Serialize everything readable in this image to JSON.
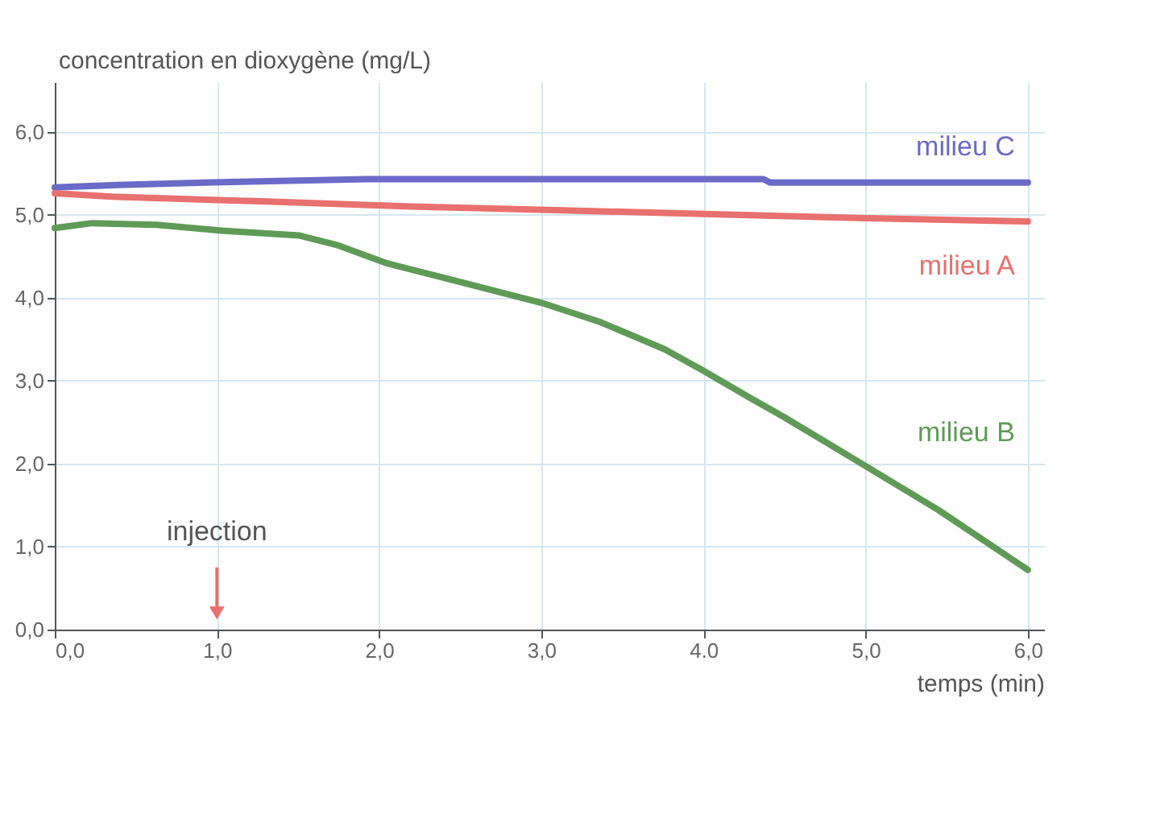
{
  "chart_data": {
    "type": "line",
    "xlabel": "temps (min)",
    "ylabel": "concentration en dioxygène (mg/L)",
    "xlim": [
      0,
      6.1
    ],
    "ylim": [
      0,
      6.6
    ],
    "xticks": [
      {
        "value": 0,
        "label": "0,0"
      },
      {
        "value": 1,
        "label": "1,0"
      },
      {
        "value": 2,
        "label": "2,0"
      },
      {
        "value": 3,
        "label": "3,0"
      },
      {
        "value": 4,
        "label": "4.0"
      },
      {
        "value": 5,
        "label": "5,0"
      },
      {
        "value": 6,
        "label": "6,0"
      }
    ],
    "yticks": [
      {
        "value": 0,
        "label": "0,0"
      },
      {
        "value": 1,
        "label": "1,0"
      },
      {
        "value": 2,
        "label": "2,0"
      },
      {
        "value": 3,
        "label": "3,0"
      },
      {
        "value": 4,
        "label": "4,0"
      },
      {
        "value": 5,
        "label": "5,0"
      },
      {
        "value": 6,
        "label": "6,0"
      }
    ],
    "grid": true,
    "legend": false,
    "marker": "none",
    "line_style": "solid",
    "series": [
      {
        "name": "milieu C",
        "color": "#6a6ac8",
        "x": [
          0,
          0.39,
          1.15,
          1.92,
          4.37,
          4.41,
          6.0
        ],
        "values": [
          5.33,
          5.36,
          5.4,
          5.43,
          5.43,
          5.39,
          5.39
        ]
      },
      {
        "name": "milieu A",
        "color": "#e8706e",
        "x": [
          0,
          0.35,
          1.31,
          2.2,
          3.04,
          4.0,
          5.01,
          6.0
        ],
        "values": [
          5.26,
          5.22,
          5.16,
          5.1,
          5.06,
          5.01,
          4.96,
          4.92
        ]
      },
      {
        "name": "milieu B",
        "color": "#5f9b57",
        "x": [
          0,
          0.23,
          0.63,
          1.03,
          1.51,
          1.75,
          2.04,
          2.44,
          3.0,
          3.36,
          3.76,
          4.0,
          4.29,
          4.49,
          5.01,
          5.45,
          6.0
        ],
        "values": [
          4.84,
          4.9,
          4.88,
          4.81,
          4.75,
          4.63,
          4.42,
          4.22,
          3.94,
          3.71,
          3.38,
          3.12,
          2.79,
          2.57,
          1.96,
          1.44,
          0.72
        ]
      }
    ],
    "annotations": [
      {
        "text": "injection",
        "x": 1.0,
        "y": 0.2
      }
    ]
  }
}
